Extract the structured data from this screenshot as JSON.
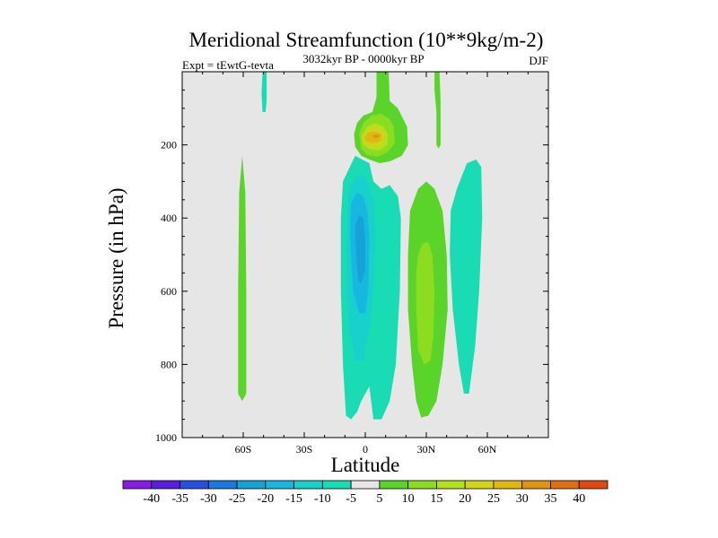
{
  "chart_data": {
    "type": "heatmap",
    "title": "Meridional Streamfunction (10**9kg/m-2)",
    "subtitle_left": "Expt = tEwtG-tevta",
    "subtitle_center": "3032kyr BP - 0000kyr BP",
    "subtitle_right": "DJF",
    "xlabel": "Latitude",
    "ylabel": "Pressure (in hPa)",
    "xlim": [
      -90,
      90
    ],
    "ylim": [
      1000,
      0
    ],
    "x_ticks": [
      {
        "value": -60,
        "label": "60S"
      },
      {
        "value": -30,
        "label": "30S"
      },
      {
        "value": 0,
        "label": "0"
      },
      {
        "value": 30,
        "label": "30N"
      },
      {
        "value": 60,
        "label": "60N"
      }
    ],
    "y_ticks": [
      {
        "value": 200,
        "label": "200"
      },
      {
        "value": 400,
        "label": "400"
      },
      {
        "value": 600,
        "label": "600"
      },
      {
        "value": 800,
        "label": "800"
      },
      {
        "value": 1000,
        "label": "1000"
      }
    ],
    "background_color": "#e6e6e6",
    "contour_levels": [
      -40,
      -35,
      -30,
      -25,
      -20,
      -15,
      -10,
      -5,
      5,
      10,
      15,
      20,
      25,
      30,
      35,
      40
    ],
    "colorbar_colors": [
      "#8a1ae6",
      "#5a1ee0",
      "#2a4fe0",
      "#1a78e0",
      "#16a2d6",
      "#17b8e0",
      "#18d0cc",
      "#19dbb4",
      "#e6e6e6",
      "#5ad42a",
      "#8cdc22",
      "#b4e020",
      "#d2d41a",
      "#e0b814",
      "#e09414",
      "#e06e12",
      "#e04a10"
    ],
    "features": [
      {
        "name": "positive-cell-45S",
        "value": 5,
        "color": "#5ad42a",
        "polygon": [
          [
            -60.5,
            230
          ],
          [
            -59,
            330
          ],
          [
            -58.5,
            600
          ],
          [
            -58.5,
            880
          ],
          [
            -60.5,
            900
          ],
          [
            -62.5,
            880
          ],
          [
            -62.5,
            600
          ],
          [
            -62,
            330
          ]
        ]
      },
      {
        "name": "negative-top-45S",
        "value": -5,
        "color": "#19dbb4",
        "polygon": [
          [
            -50.5,
            0
          ],
          [
            -48.5,
            0
          ],
          [
            -48.5,
            80
          ],
          [
            -49,
            110
          ],
          [
            -50.5,
            110
          ],
          [
            -51,
            60
          ]
        ]
      },
      {
        "name": "negative-cell-equator-outer",
        "value": -5,
        "color": "#19dbb4",
        "polygon": [
          [
            -11,
            300
          ],
          [
            -5,
            230
          ],
          [
            2,
            250
          ],
          [
            4,
            300
          ],
          [
            8,
            320
          ],
          [
            12,
            310
          ],
          [
            16,
            340
          ],
          [
            17.5,
            400
          ],
          [
            17,
            600
          ],
          [
            15,
            800
          ],
          [
            12,
            900
          ],
          [
            8,
            950
          ],
          [
            4,
            950
          ],
          [
            2,
            860
          ],
          [
            -2,
            900
          ],
          [
            -4,
            930
          ],
          [
            -7,
            950
          ],
          [
            -9.5,
            940
          ],
          [
            -11,
            800
          ],
          [
            -12,
            600
          ],
          [
            -12,
            400
          ]
        ]
      },
      {
        "name": "negative-cell-equator-mid",
        "value": -10,
        "color": "#18d0cc",
        "polygon": [
          [
            -8,
            320
          ],
          [
            -4,
            280
          ],
          [
            0,
            290
          ],
          [
            2,
            320
          ],
          [
            4,
            350
          ],
          [
            5,
            450
          ],
          [
            4,
            600
          ],
          [
            2,
            700
          ],
          [
            -1,
            790
          ],
          [
            -5,
            790
          ],
          [
            -8,
            700
          ],
          [
            -9,
            600
          ],
          [
            -9,
            420
          ]
        ]
      },
      {
        "name": "negative-cell-equator-inner",
        "value": -15,
        "color": "#17b8e0",
        "polygon": [
          [
            -7,
            360
          ],
          [
            -4,
            330
          ],
          [
            -1,
            340
          ],
          [
            1,
            380
          ],
          [
            2,
            450
          ],
          [
            1.5,
            600
          ],
          [
            0,
            660
          ],
          [
            -3,
            660
          ],
          [
            -6,
            600
          ],
          [
            -7.5,
            450
          ]
        ]
      },
      {
        "name": "negative-cell-equator-core",
        "value": -20,
        "color": "#16a2d6",
        "polygon": [
          [
            -5,
            420
          ],
          [
            -3,
            390
          ],
          [
            -1,
            400
          ],
          [
            0,
            460
          ],
          [
            0,
            540
          ],
          [
            -2,
            580
          ],
          [
            -3.5,
            570
          ],
          [
            -4.5,
            500
          ]
        ]
      },
      {
        "name": "negative-thin-5N",
        "value": -5,
        "color": "#19dbb4",
        "polygon": [
          [
            10.5,
            560
          ],
          [
            12,
            560
          ],
          [
            12.5,
            780
          ],
          [
            11,
            790
          ]
        ]
      },
      {
        "name": "positive-upper-jet-outer",
        "value": 5,
        "color": "#5ad42a",
        "polygon": [
          [
            5.5,
            0
          ],
          [
            11.5,
            0
          ],
          [
            12,
            80
          ],
          [
            16,
            100
          ],
          [
            20.5,
            150
          ],
          [
            21,
            200
          ],
          [
            18,
            230
          ],
          [
            12,
            245
          ],
          [
            7,
            250
          ],
          [
            2,
            240
          ],
          [
            -2,
            230
          ],
          [
            -5,
            205
          ],
          [
            -5.5,
            170
          ],
          [
            -4,
            140
          ],
          [
            -1,
            120
          ],
          [
            3.5,
            110
          ],
          [
            5.5,
            70
          ]
        ]
      },
      {
        "name": "positive-upper-jet-10",
        "value": 10,
        "color": "#8cdc22",
        "polygon": [
          [
            -3,
            170
          ],
          [
            -1,
            140
          ],
          [
            3,
            120
          ],
          [
            8,
            115
          ],
          [
            12,
            130
          ],
          [
            14,
            150
          ],
          [
            14.5,
            195
          ],
          [
            11,
            220
          ],
          [
            6,
            232
          ],
          [
            1,
            228
          ],
          [
            -2,
            210
          ]
        ]
      },
      {
        "name": "positive-upper-jet-15",
        "value": 15,
        "color": "#b4e020",
        "polygon": [
          [
            -2,
            175
          ],
          [
            1,
            150
          ],
          [
            5,
            140
          ],
          [
            9,
            150
          ],
          [
            11,
            170
          ],
          [
            11,
            200
          ],
          [
            7,
            215
          ],
          [
            2,
            212
          ],
          [
            -1,
            200
          ]
        ]
      },
      {
        "name": "positive-upper-jet-20",
        "value": 20,
        "color": "#d2d41a",
        "polygon": [
          [
            -1,
            178
          ],
          [
            1,
            158
          ],
          [
            5,
            152
          ],
          [
            9,
            160
          ],
          [
            9.5,
            182
          ],
          [
            7,
            200
          ],
          [
            3,
            203
          ],
          [
            0,
            196
          ]
        ]
      },
      {
        "name": "positive-upper-jet-25",
        "value": 25,
        "color": "#e0b814",
        "polygon": [
          [
            -0.5,
            178
          ],
          [
            2,
            165
          ],
          [
            5,
            163
          ],
          [
            8,
            170
          ],
          [
            8,
            185
          ],
          [
            6,
            193
          ],
          [
            3,
            195
          ],
          [
            0.5,
            190
          ]
        ]
      },
      {
        "name": "positive-upper-jet-core",
        "value": 30,
        "color": "#e09414",
        "polygon": [
          [
            3.5,
            175
          ],
          [
            5,
            171
          ],
          [
            7.5,
            175
          ],
          [
            6,
            180
          ],
          [
            5,
            183
          ]
        ]
      },
      {
        "name": "positive-top-25N",
        "value": 5,
        "color": "#5ad42a",
        "polygon": [
          [
            34,
            0
          ],
          [
            36.5,
            0
          ],
          [
            37,
            80
          ],
          [
            37,
            200
          ],
          [
            36,
            210
          ],
          [
            35,
            200
          ],
          [
            35,
            110
          ],
          [
            34,
            50
          ]
        ]
      },
      {
        "name": "positive-cell-25N-outer",
        "value": 5,
        "color": "#5ad42a",
        "polygon": [
          [
            22,
            380
          ],
          [
            26,
            320
          ],
          [
            30,
            300
          ],
          [
            34,
            320
          ],
          [
            38,
            380
          ],
          [
            40,
            500
          ],
          [
            40.5,
            650
          ],
          [
            38,
            800
          ],
          [
            35,
            900
          ],
          [
            31,
            940
          ],
          [
            27.5,
            945
          ],
          [
            25,
            900
          ],
          [
            23,
            800
          ],
          [
            21,
            650
          ],
          [
            21,
            500
          ]
        ]
      },
      {
        "name": "positive-cell-25N-10",
        "value": 10,
        "color": "#8cdc22",
        "polygon": [
          [
            26,
            500
          ],
          [
            28,
            470
          ],
          [
            31,
            465
          ],
          [
            33,
            500
          ],
          [
            34,
            600
          ],
          [
            33.5,
            720
          ],
          [
            32,
            790
          ],
          [
            29,
            800
          ],
          [
            26,
            760
          ],
          [
            25,
            650
          ],
          [
            25,
            550
          ]
        ]
      },
      {
        "name": "negative-cell-50N",
        "value": -5,
        "color": "#19dbb4",
        "polygon": [
          [
            42,
            380
          ],
          [
            45,
            320
          ],
          [
            50,
            250
          ],
          [
            54.5,
            240
          ],
          [
            57,
            260
          ],
          [
            57.5,
            400
          ],
          [
            56,
            600
          ],
          [
            54,
            750
          ],
          [
            51,
            880
          ],
          [
            48.5,
            880
          ],
          [
            46,
            800
          ],
          [
            43,
            650
          ],
          [
            41.5,
            500
          ]
        ]
      }
    ]
  }
}
